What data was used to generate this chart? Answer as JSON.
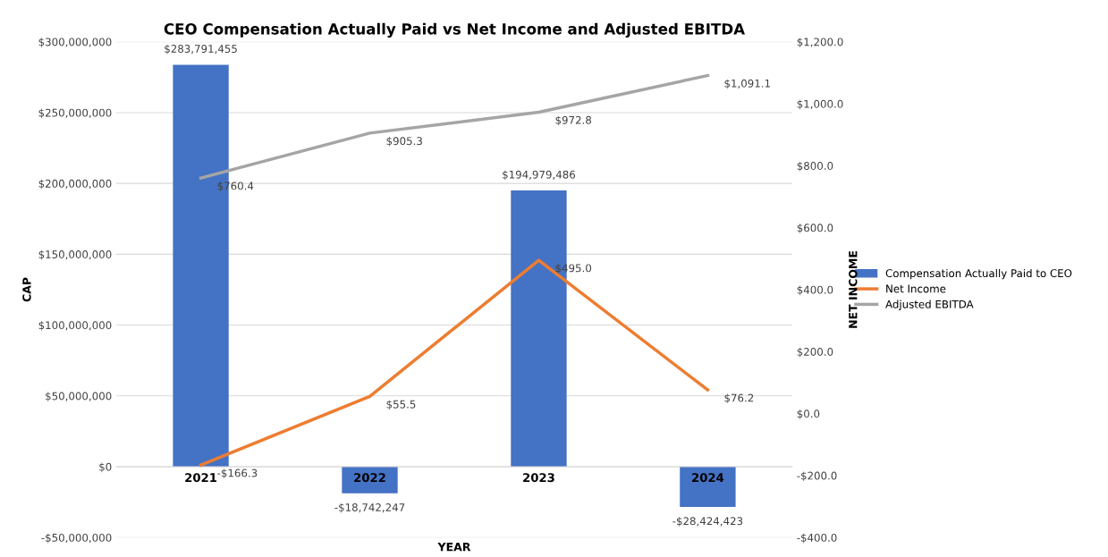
{
  "chart_data": {
    "type": "bar",
    "title": "CEO Compensation Actually Paid vs Net Income and Adjusted EBITDA",
    "xlabel": "YEAR",
    "ylabel": "CAP",
    "y2label": "NET INCOME",
    "categories": [
      "2021",
      "2022",
      "2023",
      "2024"
    ],
    "series": [
      {
        "name": "Compensation Actually Paid to CEO",
        "color": "#4472c4",
        "values": [
          283791455,
          -18742247,
          194979486,
          -28424423
        ],
        "value_labels": [
          "$283,791,455",
          "-$18,742,247",
          "$194,979,486",
          "-$28,424,423"
        ]
      },
      {
        "name": "Net Income",
        "type": "line",
        "axis": "y2",
        "color": "#ed7d31",
        "values": [
          -166.3,
          55.5,
          495.0,
          76.2
        ],
        "value_labels": [
          "-$166.3",
          "$55.5",
          "$495.0",
          "$76.2"
        ]
      },
      {
        "name": "Adjusted EBITDA",
        "type": "line",
        "axis": "y2",
        "color": "#a5a5a5",
        "values": [
          760.4,
          905.3,
          972.8,
          1091.1
        ],
        "value_labels": [
          "$760.4",
          "$905.3",
          "$972.8",
          "$1,091.1"
        ]
      }
    ],
    "ylim": [
      -50000000,
      300000000
    ],
    "yticks": [
      {
        "value": -50000000,
        "label": "-$50,000,000"
      },
      {
        "value": 0,
        "label": "$0"
      },
      {
        "value": 50000000,
        "label": "$50,000,000"
      },
      {
        "value": 100000000,
        "label": "$100,000,000"
      },
      {
        "value": 150000000,
        "label": "$150,000,000"
      },
      {
        "value": 200000000,
        "label": "$200,000,000"
      },
      {
        "value": 250000000,
        "label": "$250,000,000"
      },
      {
        "value": 300000000,
        "label": "$300,000,000"
      }
    ],
    "y2lim": [
      -400,
      1200
    ],
    "y2ticks": [
      {
        "value": -400,
        "label": "-$400.0"
      },
      {
        "value": -200,
        "label": "-$200.0"
      },
      {
        "value": 0,
        "label": "$0.0"
      },
      {
        "value": 200,
        "label": "$200.0"
      },
      {
        "value": 400,
        "label": "$400.0"
      },
      {
        "value": 600,
        "label": "$600.0"
      },
      {
        "value": 800,
        "label": "$800.0"
      },
      {
        "value": 1000,
        "label": "$1,000.0"
      },
      {
        "value": 1200,
        "label": "$1,200.0"
      }
    ],
    "grid": "y",
    "legend": "right",
    "marker": "none",
    "line_style": "solid"
  }
}
